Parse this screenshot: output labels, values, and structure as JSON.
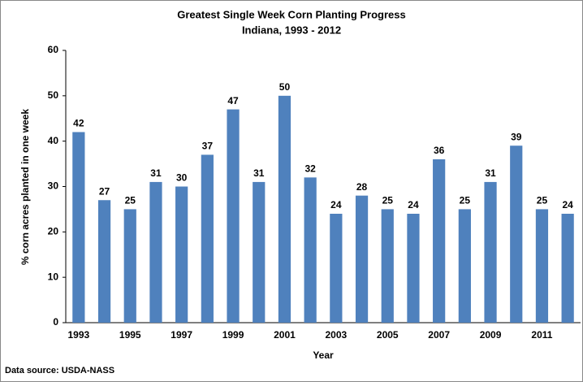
{
  "chart_data": {
    "type": "bar",
    "title": "Greatest Single Week Corn Planting Progress",
    "subtitle": "Indiana, 1993 - 2012",
    "x_label": "Year",
    "y_label": "% corn acres planted in one week",
    "source": "Data source: USDA-NASS",
    "categories": [
      "1993",
      null,
      "1995",
      null,
      "1997",
      null,
      "1999",
      null,
      "2001",
      null,
      "2003",
      null,
      "2005",
      null,
      "2007",
      null,
      "2009",
      null,
      "2011",
      null
    ],
    "values": [
      42,
      27,
      25,
      31,
      30,
      37,
      47,
      31,
      50,
      32,
      24,
      28,
      25,
      24,
      36,
      25,
      31,
      39,
      25,
      24
    ],
    "color": "#4f81bd",
    "ylim": [
      0,
      60
    ],
    "yticks": [
      0,
      10,
      20,
      30,
      40,
      50,
      60
    ],
    "grid": false
  }
}
